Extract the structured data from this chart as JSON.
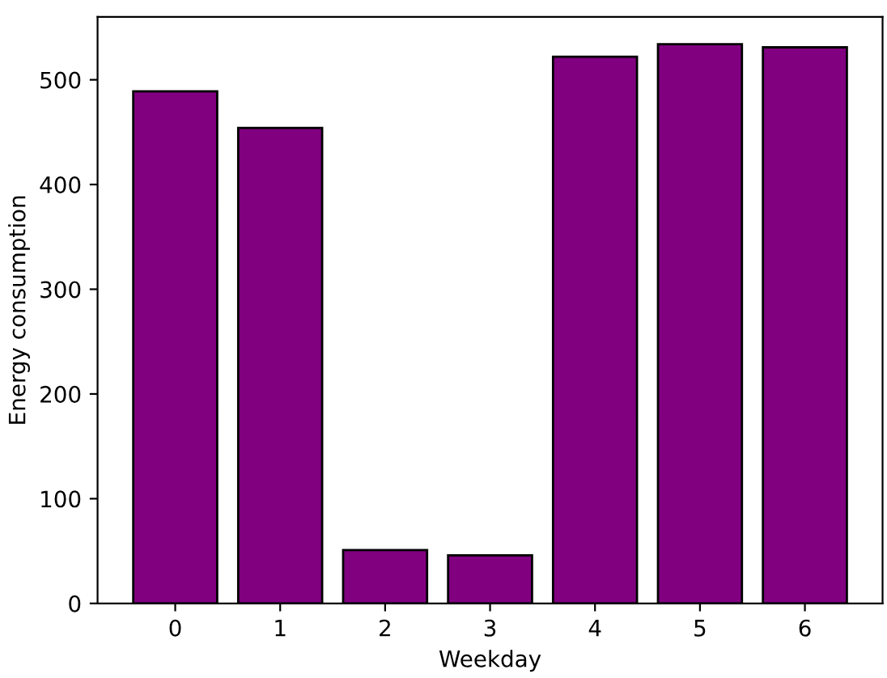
{
  "chart_data": {
    "type": "bar",
    "xlabel": "Weekday",
    "ylabel": "Energy consumption",
    "categories": [
      "0",
      "1",
      "2",
      "3",
      "4",
      "5",
      "6"
    ],
    "values": [
      489,
      454,
      51,
      46,
      522,
      534,
      531
    ],
    "color": "#800080",
    "ylim": [
      0,
      560
    ],
    "yticks": [
      0,
      100,
      200,
      300,
      400,
      500
    ],
    "grid": false,
    "legend": false
  }
}
